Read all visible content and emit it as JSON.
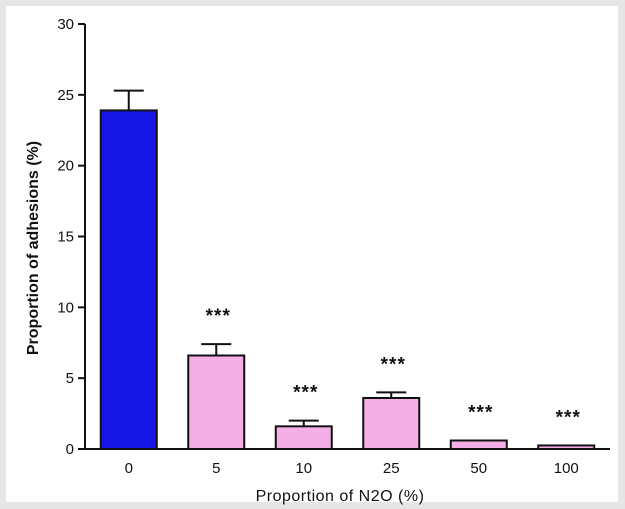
{
  "chart_data": {
    "type": "bar",
    "categories": [
      "0",
      "5",
      "10",
      "25",
      "50",
      "100"
    ],
    "values": [
      23.9,
      6.6,
      1.6,
      3.6,
      0.6,
      0.25
    ],
    "error_upper": [
      25.3,
      7.4,
      2.0,
      4.0,
      0.6,
      0.25
    ],
    "annotations": [
      "",
      "***",
      "***",
      "***",
      "***",
      "***"
    ],
    "colors": [
      "#1616e6",
      "#f4b0e6",
      "#f4b0e6",
      "#f4b0e6",
      "#f4b0e6",
      "#f4b0e6"
    ],
    "xlabel": "Proportion of N2O (%)",
    "ylabel": "Proportion of adhesions (%)",
    "ylim": [
      0,
      30
    ],
    "yticks": [
      "0",
      "5",
      "10",
      "15",
      "20",
      "25",
      "30"
    ],
    "grid": false,
    "legend": "none"
  }
}
